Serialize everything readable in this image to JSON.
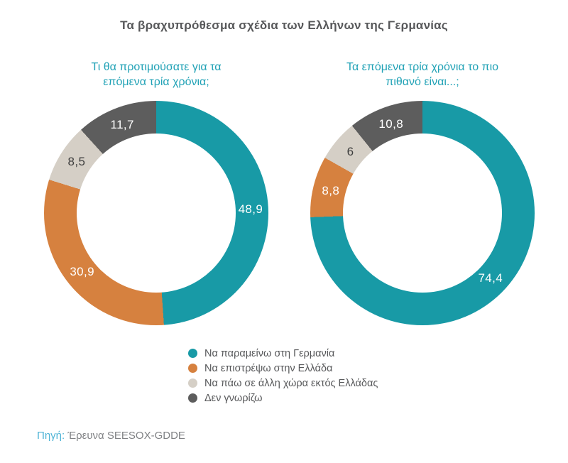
{
  "title": "Τα βραχυπρόθεσμα σχέδια των Ελλήνων της Γερμανίας",
  "colors": {
    "teal": "#189aa6",
    "orange": "#d6813f",
    "light_gray": "#d5cfc6",
    "dark_gray": "#5d5d5d",
    "subtitle_teal": "#21a2b6",
    "title_text": "#57585a",
    "source_prefix_blue": "#4fb4d6",
    "source_text_gray": "#7f8184",
    "label_on_dark": "#ffffff",
    "label_on_light": "#3e3e3e"
  },
  "chart_data": [
    {
      "type": "pie",
      "subtype": "donut",
      "title": "Τι θα προτιμούσατε για τα επόμενα τρία χρόνια;",
      "subtitle_lines": [
        "Τι θα προτιμούσατε για τα",
        "επόμενα τρία χρόνια;"
      ],
      "categories": [
        "Να παραμείνω στη Γερμανία",
        "Να επιστρέψω στην Ελλάδα",
        "Να πάω σε άλλη χώρα εκτός Ελλάδας",
        "Δεν γνωρίζω"
      ],
      "values": [
        48.9,
        30.9,
        8.5,
        11.7
      ],
      "labels": [
        "48,9",
        "30,9",
        "8,5",
        "11,7"
      ],
      "slice_color_keys": [
        "teal",
        "orange",
        "light_gray",
        "dark_gray"
      ],
      "label_colors": [
        "#ffffff",
        "#ffffff",
        "#3e3e3e",
        "#ffffff"
      ],
      "unit": "%",
      "start_angle_deg": 0,
      "direction": "clockwise",
      "legend_position": "bottom-center"
    },
    {
      "type": "pie",
      "subtype": "donut",
      "title": "Τα επόμενα τρία χρόνια το πιο πιθανό είναι...;",
      "subtitle_lines": [
        "Τα επόμενα τρία χρόνια το πιο",
        "πιθανό είναι...;"
      ],
      "categories": [
        "Να παραμείνω στη Γερμανία",
        "Να επιστρέψω στην Ελλάδα",
        "Να πάω σε άλλη χώρα εκτός Ελλάδας",
        "Δεν γνωρίζω"
      ],
      "values": [
        74.4,
        8.8,
        6,
        10.8
      ],
      "labels": [
        "74,4",
        "8,8",
        "6",
        "10,8"
      ],
      "slice_color_keys": [
        "teal",
        "orange",
        "light_gray",
        "dark_gray"
      ],
      "label_colors": [
        "#ffffff",
        "#ffffff",
        "#3e3e3e",
        "#ffffff"
      ],
      "unit": "%",
      "start_angle_deg": 0,
      "direction": "clockwise",
      "legend_position": "bottom-center"
    }
  ],
  "legend": {
    "items": [
      {
        "label": "Να παραμείνω στη Γερμανία",
        "color_key": "teal"
      },
      {
        "label": "Να επιστρέψω στην Ελλάδα",
        "color_key": "orange"
      },
      {
        "label": "Να πάω σε άλλη χώρα εκτός Ελλάδας",
        "color_key": "light_gray"
      },
      {
        "label": "Δεν γνωρίζω",
        "color_key": "dark_gray"
      }
    ]
  },
  "source": {
    "prefix": "Πηγή:",
    "text": "Έρευνα SEESOX-GDDE"
  }
}
